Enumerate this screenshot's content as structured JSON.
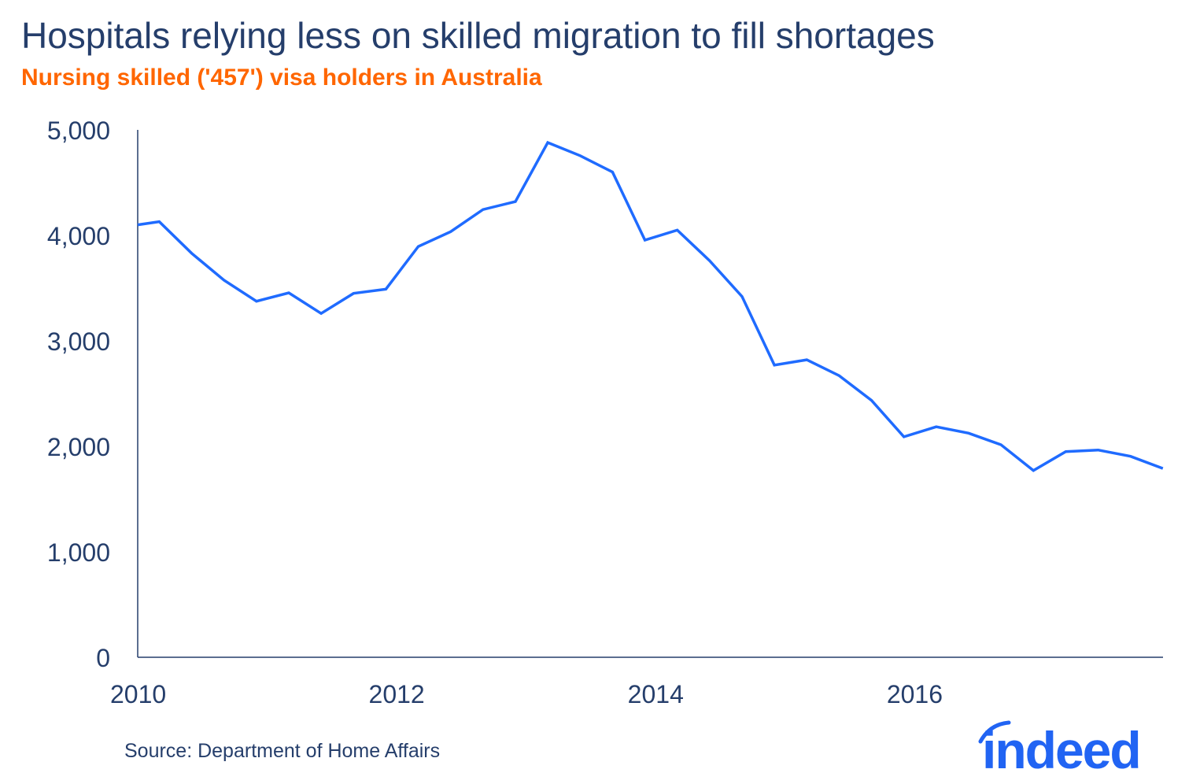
{
  "title": "Hospitals relying less on skilled migration to fill shortages",
  "subtitle": "Nursing skilled ('457') visa holders in Australia",
  "source": "Source: Department of Home Affairs",
  "logo_text": "indeed",
  "colors": {
    "line": "#1f6bff",
    "text": "#253e6b",
    "subtitle": "#ff6600",
    "logo": "#2164f3"
  },
  "chart_data": {
    "type": "line",
    "title": "Hospitals relying less on skilled migration to fill shortages",
    "subtitle": "Nursing skilled ('457') visa holders in Australia",
    "xlabel": "",
    "ylabel": "",
    "ylim": [
      0,
      5000
    ],
    "xlim": [
      "2010-01",
      "2017-12"
    ],
    "yticks": [
      "0",
      "1,000",
      "2,000",
      "3,000",
      "4,000",
      "5,000"
    ],
    "xticks": [
      "2010",
      "2012",
      "2014",
      "2016"
    ],
    "grid": false,
    "x": [
      "2009-12",
      "2010-03",
      "2010-06",
      "2010-09",
      "2010-12",
      "2011-03",
      "2011-06",
      "2011-09",
      "2011-12",
      "2012-03",
      "2012-06",
      "2012-09",
      "2012-12",
      "2013-03",
      "2013-06",
      "2013-09",
      "2013-12",
      "2014-03",
      "2014-06",
      "2014-09",
      "2014-12",
      "2015-03",
      "2015-06",
      "2015-09",
      "2015-12",
      "2016-03",
      "2016-06",
      "2016-09",
      "2016-12",
      "2017-03",
      "2017-06",
      "2017-09",
      "2017-12"
    ],
    "values": [
      4100,
      4130,
      3830,
      3575,
      3375,
      3455,
      3260,
      3450,
      3490,
      3895,
      4035,
      4245,
      4320,
      4880,
      4755,
      4600,
      3955,
      4050,
      3760,
      3420,
      2770,
      2820,
      2670,
      2435,
      2090,
      2185,
      2125,
      2015,
      1770,
      1950,
      1965,
      1905,
      1790
    ]
  }
}
